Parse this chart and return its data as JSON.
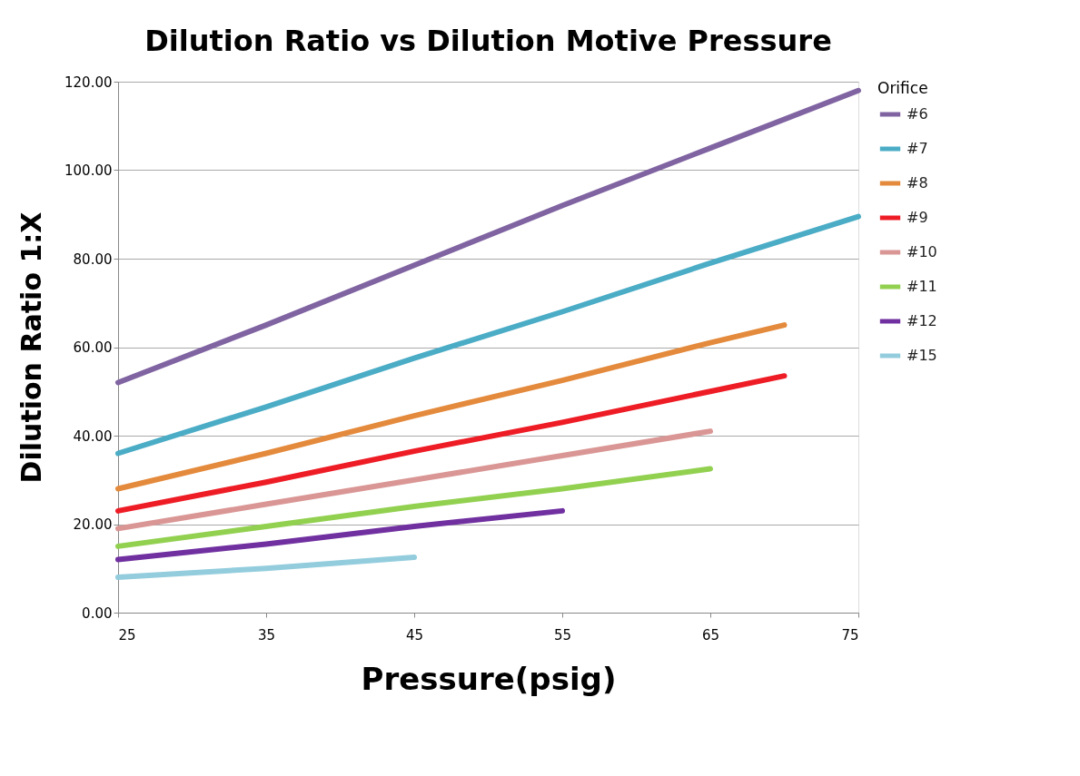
{
  "chart_data": {
    "type": "line",
    "title": "Dilution Ratio vs Dilution Motive Pressure",
    "xlabel": "Pressure(psig)",
    "ylabel": "Dilution Ratio 1:X",
    "legend_title": "Orifice",
    "xlim": [
      25,
      75
    ],
    "xticks": [
      25,
      35,
      45,
      55,
      65,
      75
    ],
    "ylim": [
      0,
      120
    ],
    "yticks": [
      {
        "value": 0,
        "label": "0.00"
      },
      {
        "value": 20,
        "label": "20.00"
      },
      {
        "value": 40,
        "label": "40.00"
      },
      {
        "value": 60,
        "label": "60.00"
      },
      {
        "value": 80,
        "label": "80.00"
      },
      {
        "value": 100,
        "label": "100.00"
      },
      {
        "value": 120,
        "label": "120.00"
      }
    ],
    "grid": "y",
    "legend": "right",
    "marker": "none",
    "line_style": "solid",
    "series": [
      {
        "name": "#6",
        "color": "#8064a2",
        "x": [
          25,
          35,
          45,
          55,
          65,
          75
        ],
        "values": [
          52,
          65,
          78.5,
          92,
          105,
          118
        ]
      },
      {
        "name": "#7",
        "color": "#4bacc6",
        "x": [
          25,
          35,
          45,
          55,
          65,
          75
        ],
        "values": [
          36,
          46.5,
          57.5,
          68,
          79,
          89.5
        ]
      },
      {
        "name": "#8",
        "color": "#e48a3c",
        "x": [
          25,
          35,
          45,
          55,
          65,
          70
        ],
        "values": [
          28,
          36,
          44.5,
          52.5,
          61,
          65
        ]
      },
      {
        "name": "#9",
        "color": "#ee1c25",
        "x": [
          25,
          35,
          45,
          55,
          65,
          70
        ],
        "values": [
          23,
          29.5,
          36.5,
          43,
          50,
          53.5
        ]
      },
      {
        "name": "#10",
        "color": "#d99694",
        "x": [
          25,
          35,
          45,
          55,
          65
        ],
        "values": [
          19,
          24.5,
          30,
          35.5,
          41
        ]
      },
      {
        "name": "#11",
        "color": "#92d050",
        "x": [
          25,
          35,
          45,
          55,
          65
        ],
        "values": [
          15,
          19.5,
          24,
          28,
          32.5
        ]
      },
      {
        "name": "#12",
        "color": "#7030a0",
        "x": [
          25,
          35,
          45,
          55
        ],
        "values": [
          12,
          15.5,
          19.5,
          23
        ]
      },
      {
        "name": "#15",
        "color": "#93cddd",
        "x": [
          25,
          35,
          45
        ],
        "values": [
          8,
          10,
          12.5
        ]
      }
    ]
  }
}
